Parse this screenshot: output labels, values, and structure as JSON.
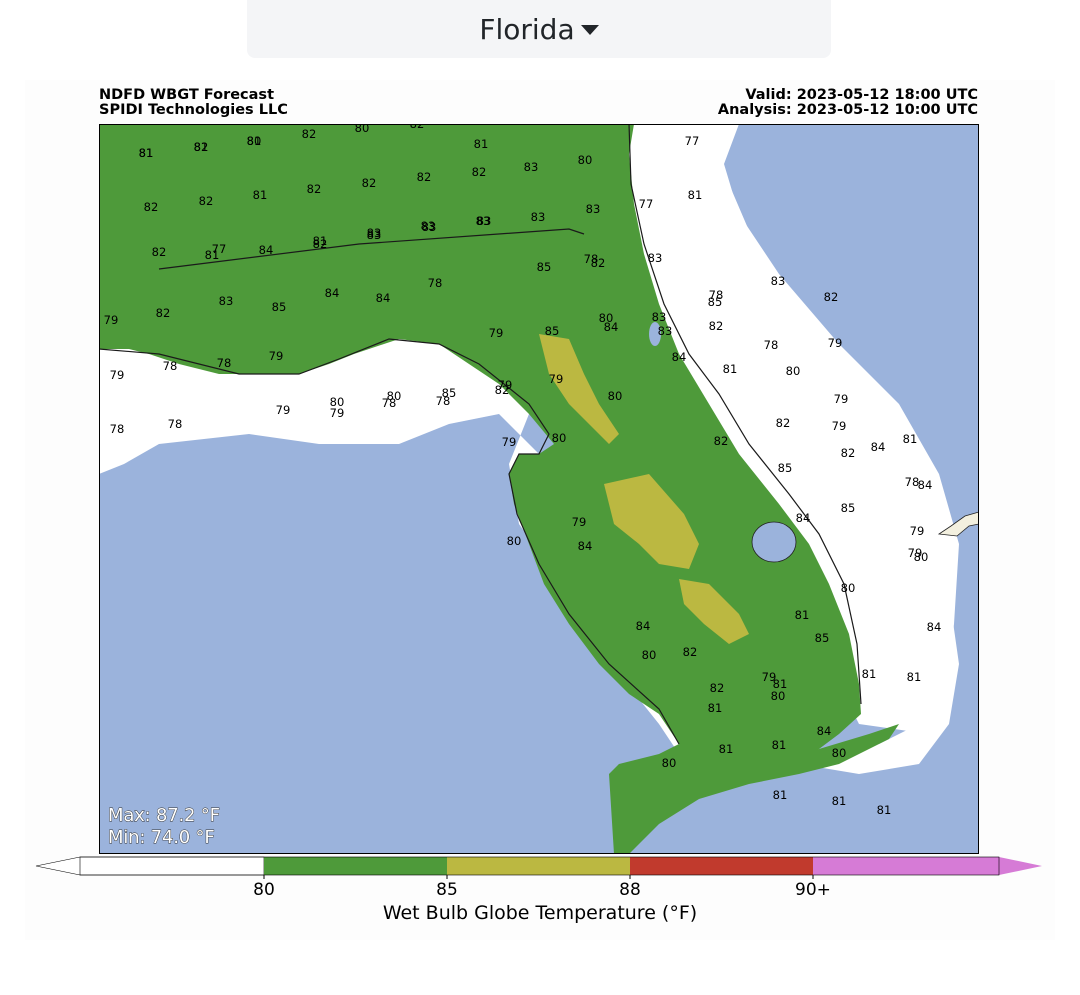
{
  "region_selector": {
    "label": "Florida",
    "icon": "caret-down-icon"
  },
  "header": {
    "line1_left": "NDFD WBGT Forecast",
    "line2_left": "SPIDI Technologies LLC",
    "line1_right": "Valid: 2023-05-12 18:00 UTC",
    "line2_right": "Analysis: 2023-05-12 10:00 UTC"
  },
  "stats": {
    "max": "Max: 87.2 °F",
    "min": "Min: 74.0 °F"
  },
  "colorbar": {
    "title": "Wet Bulb Globe Temperature (°F)",
    "ticks": [
      "80",
      "85",
      "88",
      "90+"
    ],
    "colors": [
      "#ffffff",
      "#4e9a3a",
      "#bbb841",
      "#c13a2d",
      "#d67bd6"
    ]
  },
  "map_colors": {
    "water": "#9bb3dc",
    "land": "#4e9a3a",
    "cool": "#ffffff",
    "warm": "#bbb841"
  },
  "values": [
    "81",
    "82",
    "80",
    "82",
    "80",
    "82",
    "81",
    "77",
    "82",
    "82",
    "81",
    "82",
    "82",
    "82",
    "82",
    "83",
    "80",
    "77",
    "81",
    "83",
    "83",
    "83",
    "83",
    "83",
    "81",
    "77",
    "82",
    "81",
    "84",
    "82",
    "83",
    "83",
    "83",
    "85",
    "82",
    "83",
    "82",
    "83",
    "85",
    "84",
    "84",
    "78",
    "78",
    "80",
    "83",
    "85",
    "83",
    "82",
    "78",
    "79",
    "78",
    "78",
    "79",
    "79",
    "78",
    "78",
    "79",
    "85",
    "79",
    "84",
    "83",
    "82",
    "78",
    "79",
    "79",
    "78",
    "79",
    "78",
    "79",
    "80",
    "80",
    "85",
    "82",
    "79",
    "79",
    "80",
    "80",
    "81",
    "84",
    "82",
    "82",
    "80",
    "79",
    "82",
    "81",
    "84",
    "79",
    "85",
    "85",
    "84",
    "84",
    "78",
    "80",
    "80",
    "81",
    "85",
    "84",
    "82",
    "79",
    "79",
    "80",
    "84",
    "84",
    "82",
    "80",
    "79",
    "81",
    "81",
    "81",
    "82",
    "81",
    "81",
    "80",
    "84",
    "80",
    "80",
    "81",
    "81",
    "81",
    "81",
    "81",
    "81",
    "81"
  ]
}
